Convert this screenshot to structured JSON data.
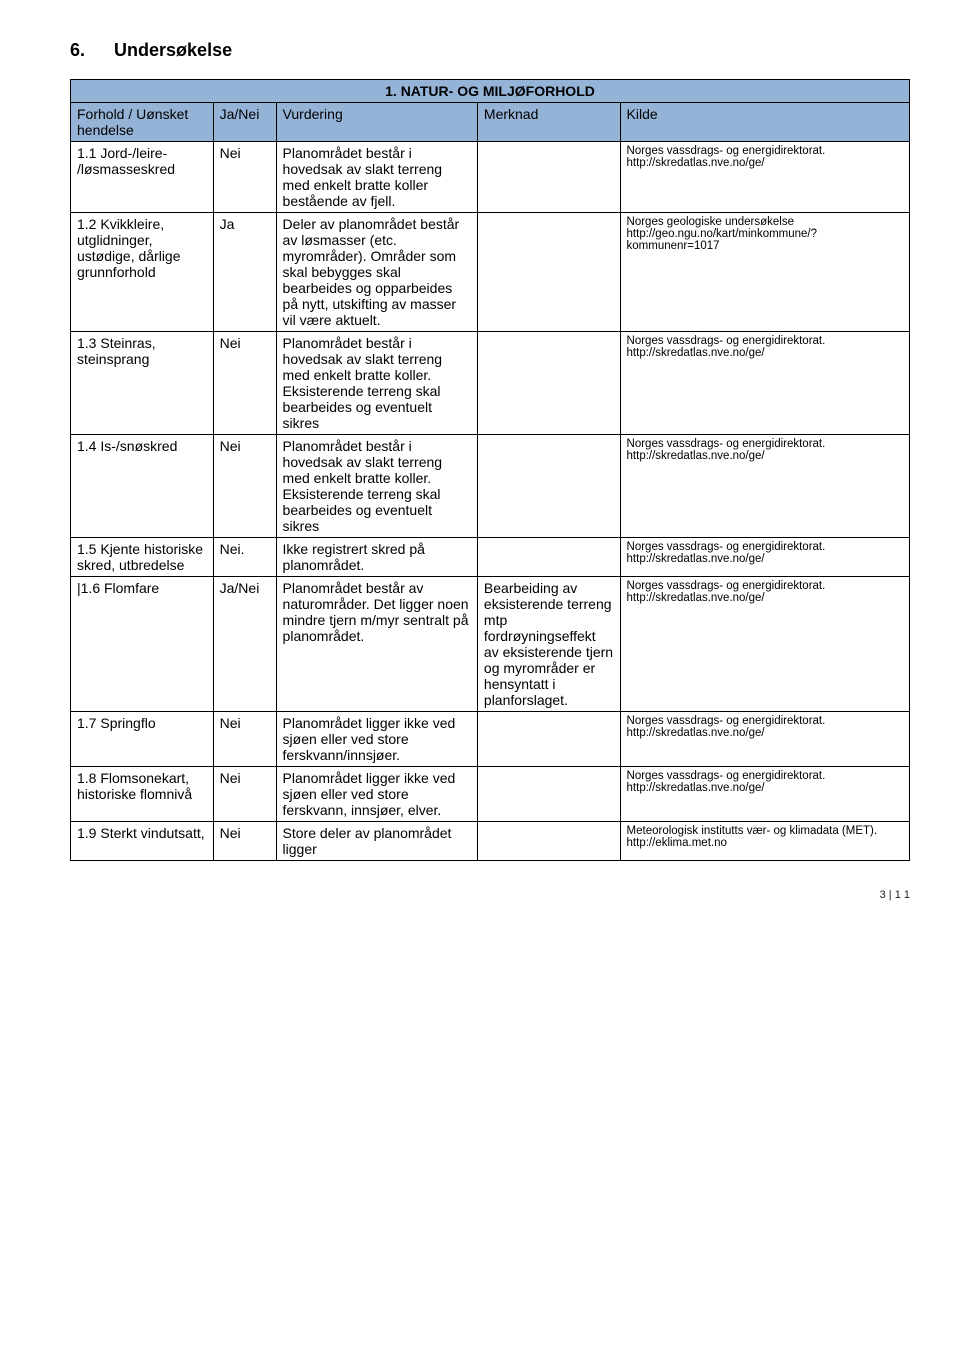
{
  "heading": {
    "number": "6.",
    "title": "Undersøkelse"
  },
  "table": {
    "header_colors": {
      "bg": "#95b3d7",
      "border": "#000000"
    },
    "banner": "1. NATUR- OG MILJØFORHOLD",
    "columns": [
      "Forhold / Uønsket hendelse",
      "Ja/Nei",
      "Vurdering",
      "Merknad",
      "Kilde"
    ],
    "rows": [
      {
        "forhold": "1.1 Jord-/leire- /løsmasseskred",
        "janei": "Nei",
        "vurdering": "Planområdet består i hovedsak av slakt terreng med enkelt bratte koller bestående av fjell.",
        "merknad": "",
        "kilde": "Norges vassdrags- og energidirektorat. http://skredatlas.nve.no/ge/"
      },
      {
        "forhold": "1.2 Kvikkleire, utglidninger, ustødige, dårlige grunnforhold",
        "janei": "Ja",
        "vurdering": "Deler av planområdet består av løsmasser (etc. myrområder). Områder som skal bebygges skal bearbeides og opparbeides på nytt, utskifting av masser vil være aktuelt.",
        "merknad": "",
        "kilde": "Norges geologiske undersøkelse http://geo.ngu.no/kart/minkommune/?kommunenr=1017"
      },
      {
        "forhold": "1.3 Steinras, steinsprang",
        "janei": "Nei",
        "vurdering": "Planområdet består i hovedsak av slakt terreng med enkelt bratte koller. Eksisterende terreng skal bearbeides og eventuelt sikres",
        "merknad": "",
        "kilde": "Norges vassdrags- og energidirektorat. http://skredatlas.nve.no/ge/"
      },
      {
        "forhold": "1.4 Is-/snøskred",
        "janei": "Nei",
        "vurdering": "Planområdet består i hovedsak av slakt terreng med enkelt bratte koller. Eksisterende terreng skal bearbeides og eventuelt sikres",
        "merknad": "",
        "kilde": "Norges vassdrags- og energidirektorat. http://skredatlas.nve.no/ge/"
      },
      {
        "forhold": "1.5 Kjente historiske skred, utbredelse",
        "janei": "Nei.",
        "vurdering": " Ikke registrert skred på planområdet.",
        "merknad": "",
        "kilde": "Norges vassdrags- og energidirektorat. http://skredatlas.nve.no/ge/"
      },
      {
        "forhold": "|1.6 Flomfare",
        "janei": "Ja/Nei",
        "vurdering": "Planområdet består av naturområder. Det ligger noen mindre tjern m/myr sentralt på planområdet.",
        "merknad": "Bearbeiding av eksisterende terreng mtp fordrøyningseffekt av eksisterende tjern og myrområder er hensyntatt i planforslaget.",
        "kilde": "Norges vassdrags- og energidirektorat. http://skredatlas.nve.no/ge/"
      },
      {
        "forhold": "1.7 Springflo",
        "janei": "Nei",
        "vurdering": " Planområdet ligger ikke ved sjøen eller ved store ferskvann/innsjøer.",
        "merknad": "",
        "kilde": "Norges vassdrags- og energidirektorat. http://skredatlas.nve.no/ge/"
      },
      {
        "forhold": "1.8 Flomsonekart, historiske flomnivå",
        "janei": "Nei",
        "vurdering": "Planområdet ligger ikke ved sjøen eller ved store ferskvann, innsjøer, elver.",
        "merknad": "",
        "kilde": "Norges vassdrags- og energidirektorat. http://skredatlas.nve.no/ge/"
      },
      {
        "forhold": "1.9 Sterkt vindutsatt,",
        "janei": "Nei",
        "vurdering": " Store deler av planområdet ligger",
        "merknad": "",
        "kilde": "Meteorologisk institutts vær- og klimadata (MET). http://eklima.met.no"
      }
    ]
  },
  "footer": "3 | 1  1"
}
